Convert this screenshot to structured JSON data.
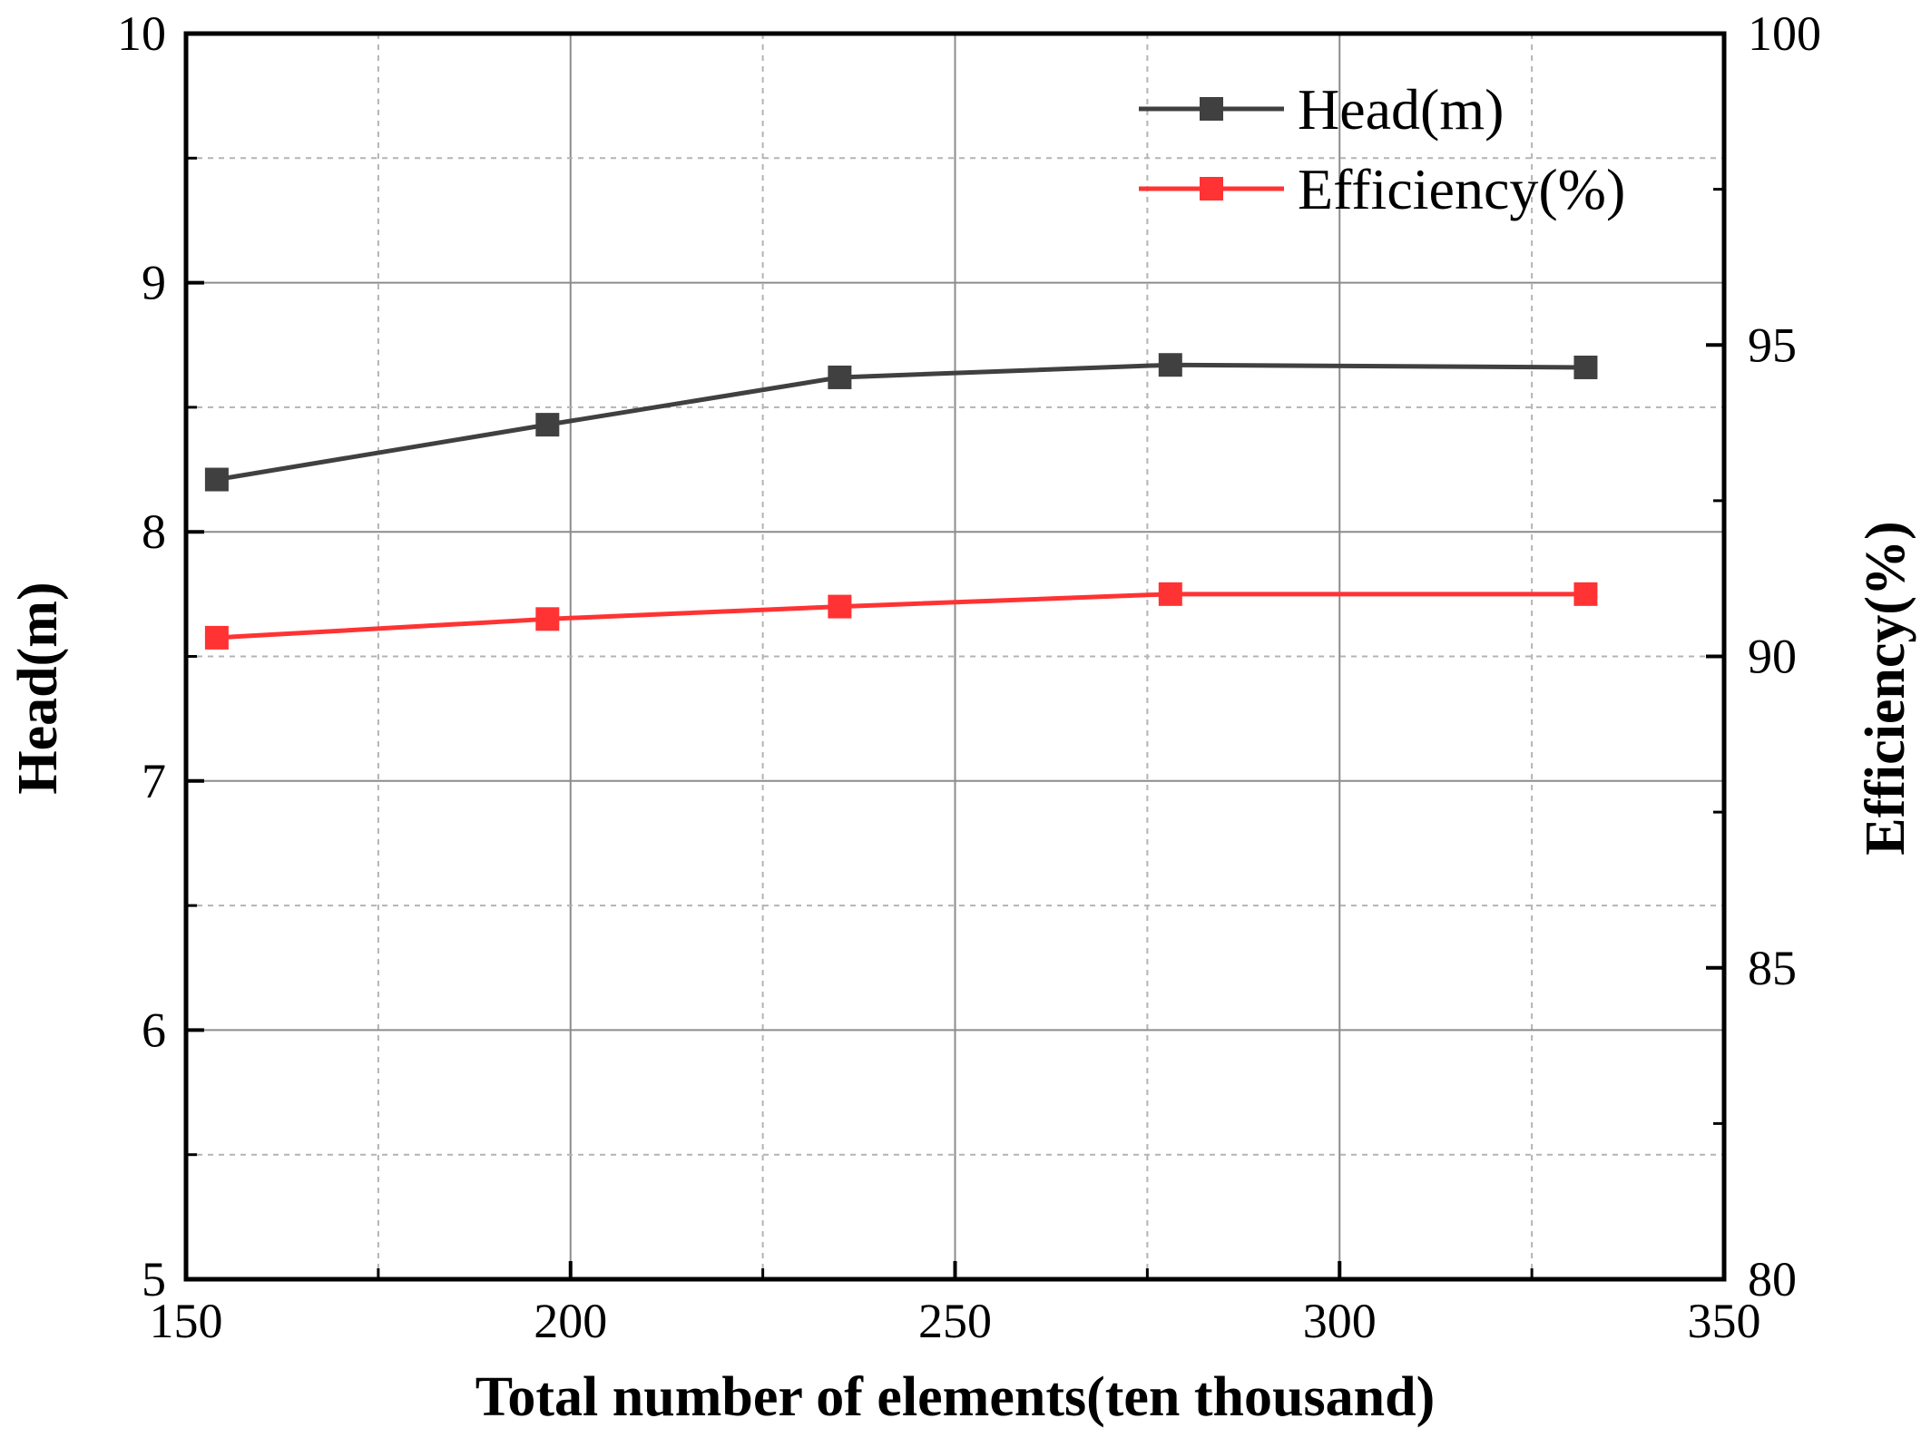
{
  "chart_data": {
    "type": "line",
    "title": "",
    "xlabel": "Total number of elements(ten thousand)",
    "ylabel_left": "Head(m)",
    "ylabel_right": "Efficiency(%)",
    "xlim": [
      150,
      350
    ],
    "ylim_left": [
      5,
      10
    ],
    "ylim_right": [
      80,
      100
    ],
    "x_ticks": [
      "150",
      "200",
      "250",
      "300",
      "350"
    ],
    "y_left_ticks": [
      "5",
      "6",
      "7",
      "8",
      "9",
      "10"
    ],
    "y_right_ticks": [
      "80",
      "85",
      "90",
      "95",
      "100"
    ],
    "grid": true,
    "legend_position": "top-right",
    "x": [
      154,
      197,
      235,
      278,
      332
    ],
    "series": [
      {
        "name": "Head(m)",
        "axis": "left",
        "color": "#404040",
        "values": [
          8.21,
          8.43,
          8.62,
          8.67,
          8.66
        ]
      },
      {
        "name": "Efficiency(%)",
        "axis": "right",
        "color": "#ff3333",
        "values": [
          90.3,
          90.6,
          90.8,
          91.0,
          91.0
        ]
      }
    ]
  }
}
